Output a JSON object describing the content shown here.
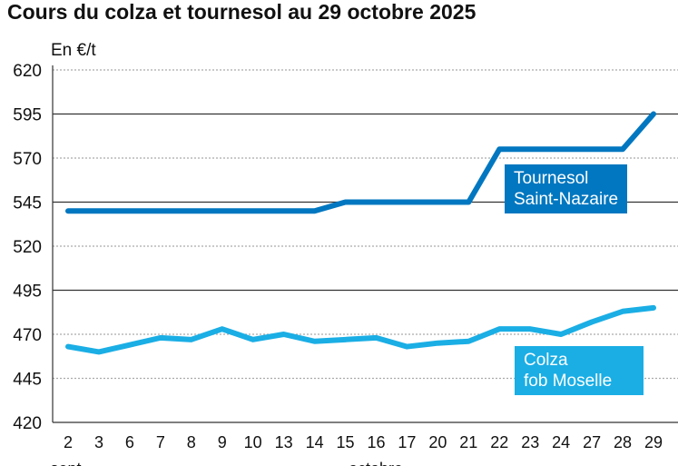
{
  "chart_data": {
    "type": "line",
    "title": "Cours du colza et tournesol au 29 octobre 2025",
    "ylabel": "En €/t",
    "ylim": [
      420,
      620
    ],
    "yticks": [
      420,
      445,
      470,
      495,
      520,
      545,
      570,
      595,
      620
    ],
    "categories": [
      "2",
      "3",
      "6",
      "7",
      "8",
      "9",
      "10",
      "13",
      "14",
      "15",
      "16",
      "17",
      "20",
      "21",
      "22",
      "23",
      "24",
      "27",
      "28",
      "29"
    ],
    "month_labels": [
      "sept.",
      "octobre"
    ],
    "series": [
      {
        "name": "Tournesol Saint-Nazaire",
        "label_lines": [
          "Tournesol",
          "Saint-Nazaire"
        ],
        "color": "#0077c0",
        "values": [
          540,
          540,
          540,
          540,
          540,
          540,
          540,
          540,
          540,
          545,
          545,
          545,
          545,
          545,
          575,
          575,
          575,
          575,
          575,
          595
        ]
      },
      {
        "name": "Colza fob Moselle",
        "label_lines": [
          "Colza",
          "fob Moselle"
        ],
        "color": "#1aaee5",
        "values": [
          463,
          460,
          464,
          468,
          467,
          473,
          467,
          470,
          466,
          467,
          468,
          463,
          465,
          466,
          473,
          473,
          470,
          477,
          483,
          485
        ]
      }
    ],
    "grid": true
  }
}
